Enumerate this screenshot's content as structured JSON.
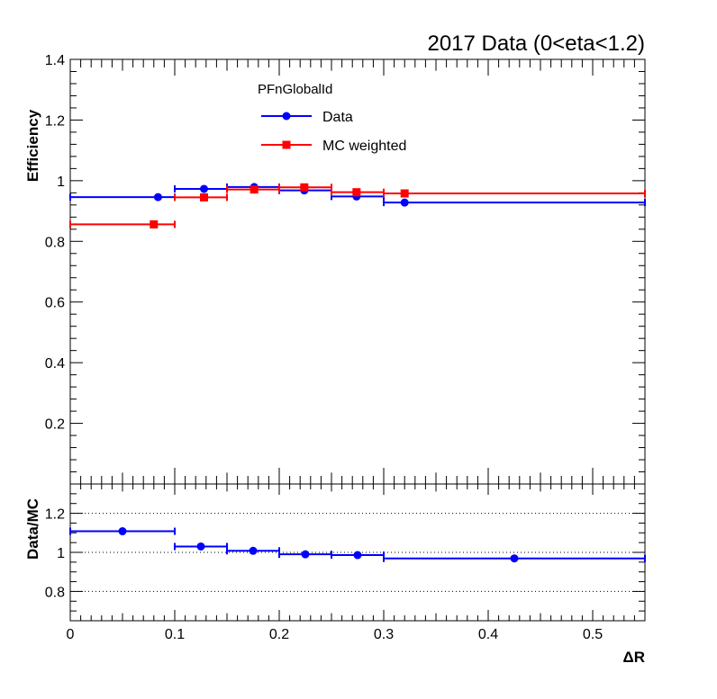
{
  "chart_data": {
    "title": "2017 Data (0<eta<1.2)",
    "legend": {
      "header": "PFnGlobalId",
      "placement": "top-center",
      "entries": [
        {
          "label": "Data",
          "color": "#0000ff",
          "marker": "circle"
        },
        {
          "label": "MC weighted",
          "color": "#ff0000",
          "marker": "square"
        }
      ]
    },
    "top": {
      "type": "scatter",
      "ylabel": "Efficiency",
      "ylim": [
        0,
        1.4
      ],
      "yticks": [
        "0.2",
        "0.4",
        "0.6",
        "0.8",
        "1",
        "1.2",
        "1.4"
      ],
      "yticks_values": [
        0.2,
        0.4,
        0.6,
        0.8,
        1.0,
        1.2,
        1.4
      ],
      "series": [
        {
          "name": "Data",
          "color": "#0000ff",
          "marker": "circle",
          "points": [
            {
              "x": 0.084,
              "xlo": 0.0,
              "xhi": 0.1,
              "y": 0.946
            },
            {
              "x": 0.128,
              "xlo": 0.1,
              "xhi": 0.15,
              "y": 0.973
            },
            {
              "x": 0.176,
              "xlo": 0.15,
              "xhi": 0.2,
              "y": 0.979
            },
            {
              "x": 0.224,
              "xlo": 0.2,
              "xhi": 0.25,
              "y": 0.968
            },
            {
              "x": 0.274,
              "xlo": 0.25,
              "xhi": 0.3,
              "y": 0.948
            },
            {
              "x": 0.32,
              "xlo": 0.3,
              "xhi": 0.55,
              "y": 0.928
            }
          ]
        },
        {
          "name": "MC weighted",
          "color": "#ff0000",
          "marker": "square",
          "points": [
            {
              "x": 0.08,
              "xlo": 0.0,
              "xhi": 0.1,
              "y": 0.856
            },
            {
              "x": 0.128,
              "xlo": 0.1,
              "xhi": 0.15,
              "y": 0.945
            },
            {
              "x": 0.176,
              "xlo": 0.15,
              "xhi": 0.2,
              "y": 0.971
            },
            {
              "x": 0.224,
              "xlo": 0.2,
              "xhi": 0.25,
              "y": 0.978
            },
            {
              "x": 0.274,
              "xlo": 0.25,
              "xhi": 0.3,
              "y": 0.962
            },
            {
              "x": 0.32,
              "xlo": 0.3,
              "xhi": 0.55,
              "y": 0.958
            }
          ]
        }
      ]
    },
    "ratio": {
      "type": "scatter",
      "ylabel": "Data/MC",
      "ylim": [
        0.65,
        1.35
      ],
      "yticks": [
        "0.8",
        "1",
        "1.2"
      ],
      "yticks_values": [
        0.8,
        1.0,
        1.2
      ],
      "gridlines": [
        0.8,
        1.0,
        1.2
      ],
      "series": [
        {
          "name": "Data/MC",
          "color": "#0000ff",
          "marker": "circle",
          "points": [
            {
              "x": 0.05,
              "xlo": 0.0,
              "xhi": 0.1,
              "y": 1.108
            },
            {
              "x": 0.125,
              "xlo": 0.1,
              "xhi": 0.15,
              "y": 1.03
            },
            {
              "x": 0.175,
              "xlo": 0.15,
              "xhi": 0.2,
              "y": 1.008
            },
            {
              "x": 0.225,
              "xlo": 0.2,
              "xhi": 0.25,
              "y": 0.99
            },
            {
              "x": 0.275,
              "xlo": 0.25,
              "xhi": 0.3,
              "y": 0.986
            },
            {
              "x": 0.425,
              "xlo": 0.3,
              "xhi": 0.55,
              "y": 0.969
            }
          ]
        }
      ]
    },
    "xaxis": {
      "label": "ΔR",
      "xlim": [
        0,
        0.55
      ],
      "ticks": [
        "0",
        "0.1",
        "0.2",
        "0.3",
        "0.4",
        "0.5"
      ],
      "ticks_values": [
        0,
        0.1,
        0.2,
        0.3,
        0.4,
        0.5
      ]
    }
  }
}
